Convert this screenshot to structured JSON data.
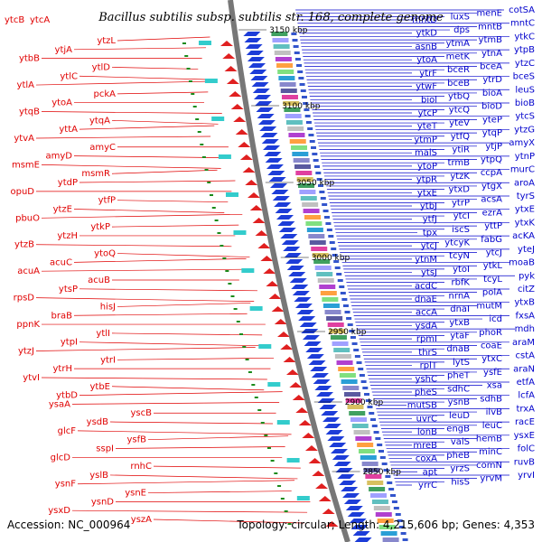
{
  "title": "Bacillus subtilis subsp. subtilis str. 168, complete genome",
  "title_left_labels": [
    "ytcB",
    "ytcA"
  ],
  "accession": "Accession: NC_000964",
  "summary": "Topology: circular; Length: 4,215,606 bp; Genes: 4,353",
  "ticks": [
    "3150 kbp",
    "3100 kbp",
    "3050 kbp",
    "3000 kbp",
    "2950 kbp",
    "2900 kbp",
    "2850 kbp"
  ],
  "colors": {
    "left_strand": "#e00000",
    "right_strand": "#0000cc",
    "backbone": "#777777"
  },
  "left_genes": [
    "ytzL",
    "ytjA",
    "ytbB",
    "ytlD",
    "ytlC",
    "ytlA",
    "pckA",
    "ytoA",
    "ytqB",
    "ytqA",
    "yttA",
    "ytvA",
    "amyC",
    "amyD",
    "msmE",
    "msmR",
    "ytdP",
    "opuD",
    "ytfP",
    "ytzE",
    "pbuO",
    "ytkP",
    "ytzH",
    "ytzB",
    "ytoQ",
    "acuC",
    "acuA",
    "acuB",
    "ytsP",
    "rpsD",
    "hisJ",
    "braB",
    "ppnK",
    "ytlI",
    "ytpI",
    "ytzJ",
    "ytrI",
    "ytrH",
    "ytvI",
    "ytbE",
    "ytbD",
    "ysaA",
    "yscB",
    "ysdB",
    "glcF",
    "ysfB",
    "sspI",
    "glcD",
    "rnhC",
    "yslB",
    "ysnF",
    "ysnE",
    "ysnD",
    "ysxD",
    "yszA"
  ],
  "right_genes": [
    "cotSA",
    "menE",
    "luxS",
    "mntD",
    "mntC",
    "mntB",
    "dps",
    "ytkD",
    "ytkC",
    "ytmB",
    "ytmA",
    "asnB",
    "ytpB",
    "ytnA",
    "metK",
    "ytoA",
    "ytzC",
    "bceA",
    "bceR",
    "ytrF",
    "bceS",
    "ytrD",
    "bceB",
    "ytwF",
    "leuS",
    "bioA",
    "ytbQ",
    "biol",
    "bioB",
    "bioD",
    "ytcQ",
    "ytcP",
    "ytcS",
    "yteP",
    "yteV",
    "yteT",
    "ytzG",
    "ytqP",
    "ytfQ",
    "ytmP",
    "amyX",
    "ytjP",
    "ytiR",
    "malS",
    "ytnP",
    "ytpQ",
    "trmB",
    "ytoP",
    "murC",
    "ccpA",
    "ytzK",
    "ytpR",
    "aroA",
    "ytgX",
    "ytxD",
    "ytxE",
    "tyrS",
    "acsA",
    "ytrP",
    "ytbJ",
    "ytxE",
    "ezrA",
    "ytcI",
    "ytfJ",
    "ytxK",
    "yttP",
    "iscS",
    "tpx",
    "acKA",
    "fabG",
    "ytcyK",
    "ytcJ",
    "yteJ",
    "ytcJ",
    "tcyN",
    "ytnM",
    "moaB",
    "ytkL",
    "ytoI",
    "ytsJ",
    "pyk",
    "tcyL",
    "rbfK",
    "acdC",
    "citZ",
    "polA",
    "nrnA",
    "dnaE",
    "ytxB",
    "mutM",
    "dnaI",
    "accA",
    "fxsA",
    "icd",
    "ytxB",
    "ysdA",
    "mdh",
    "phoR",
    "ytaF",
    "rpmI",
    "araM",
    "coaE",
    "dnaB",
    "thrS",
    "cstA",
    "ytxC",
    "lytS",
    "rplT",
    "araN",
    "ysfE",
    "pheT",
    "yshC",
    "etfA",
    "xsa",
    "sdhC",
    "pheS",
    "lcfA",
    "sdhB",
    "ysnB",
    "mutSB",
    "trxA",
    "ilvB",
    "leuD",
    "uvrC",
    "racE",
    "leuC",
    "engB",
    "lonB",
    "ysxE",
    "hemB",
    "valS",
    "mreB",
    "folC",
    "minC",
    "pheB",
    "coxA",
    "ruvB",
    "comN",
    "yrzS",
    "apt",
    "yrvI",
    "yrvM",
    "hisS",
    "yrrC"
  ]
}
